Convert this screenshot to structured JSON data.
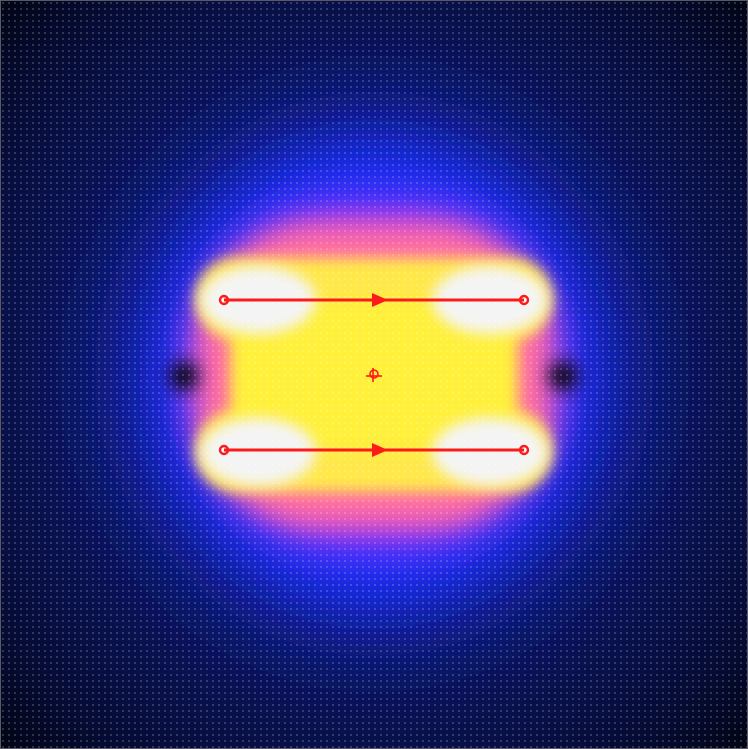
{
  "visualization": {
    "kind": "magnetic field intensity of two parallel current-carrying wires",
    "wire_count": 2,
    "current_direction": "left-to-right",
    "has_center_marker": true,
    "has_grid_overlay": true
  },
  "colors": {
    "background": "#000008",
    "field_low": "#0a1660",
    "field_mid": "#1a2cff",
    "field_violet": "#c233f0",
    "field_pink": "#ff6ea0",
    "field_yellow": "#ffff33",
    "field_peak": "#f2f2f2",
    "wire": "#ff1a1a",
    "null_point": "#000000"
  },
  "icons": {
    "wire_start": "circle-icon",
    "wire_end": "circle-icon",
    "current_arrow": "arrow-right-icon",
    "center_marker": "crosshair-icon"
  }
}
